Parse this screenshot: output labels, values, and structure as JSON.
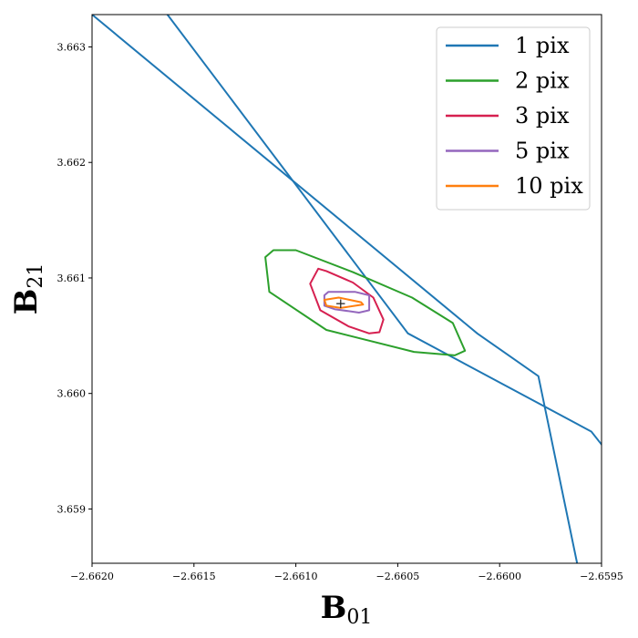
{
  "chart_data": {
    "type": "line",
    "title": "",
    "xlabel": {
      "main": "B",
      "sub": "01"
    },
    "ylabel": {
      "main": "B",
      "sub": "21"
    },
    "xlim": [
      -2.662,
      -2.6595
    ],
    "ylim": [
      3.65853,
      3.66328
    ],
    "xticks": [
      -2.662,
      -2.6615,
      -2.661,
      -2.6605,
      -2.66,
      -2.6595
    ],
    "xtick_labels": [
      "−2.6620",
      "−2.6615",
      "−2.6610",
      "−2.6605",
      "−2.6600",
      "−2.6595"
    ],
    "yticks": [
      3.659,
      3.66,
      3.661,
      3.662,
      3.663
    ],
    "ytick_labels": [
      "3.659",
      "3.660",
      "3.661",
      "3.662",
      "3.663"
    ],
    "grid": false,
    "legend_position": "top-right",
    "center_marker": {
      "x": -2.66078,
      "y": 3.66078,
      "symbol": "+"
    },
    "series": [
      {
        "name": "1 pix",
        "color": "#1f77b4",
        "lines": [
          [
            [
              -2.662,
              3.66328
            ],
            [
              -2.66011,
              3.66052
            ],
            [
              -2.65981,
              3.66015
            ],
            [
              -2.65962,
              3.65853
            ]
          ],
          [
            [
              -2.66163,
              3.66328
            ],
            [
              -2.66045,
              3.66052
            ],
            [
              -2.65955,
              3.65967
            ],
            [
              -2.65904,
              3.65853
            ]
          ]
        ]
      },
      {
        "name": "2 pix",
        "color": "#2ca02c",
        "closed": true,
        "points": [
          [
            -2.66111,
            3.66124
          ],
          [
            -2.661,
            3.66124
          ],
          [
            -2.66072,
            3.66105
          ],
          [
            -2.66043,
            3.66083
          ],
          [
            -2.66023,
            3.66061
          ],
          [
            -2.66017,
            3.66037
          ],
          [
            -2.66022,
            3.66033
          ],
          [
            -2.66042,
            3.66036
          ],
          [
            -2.66085,
            3.66055
          ],
          [
            -2.66113,
            3.66088
          ],
          [
            -2.66115,
            3.66118
          ]
        ]
      },
      {
        "name": "3 pix",
        "color": "#d62050",
        "closed": true,
        "points": [
          [
            -2.66089,
            3.66108
          ],
          [
            -2.66085,
            3.66106
          ],
          [
            -2.66072,
            3.66096
          ],
          [
            -2.66062,
            3.66083
          ],
          [
            -2.66057,
            3.66064
          ],
          [
            -2.66059,
            3.66053
          ],
          [
            -2.66064,
            3.66052
          ],
          [
            -2.66074,
            3.66058
          ],
          [
            -2.66088,
            3.66072
          ],
          [
            -2.66093,
            3.66095
          ]
        ]
      },
      {
        "name": "5 pix",
        "color": "#9467bd",
        "closed": true,
        "points": [
          [
            -2.66084,
            3.66088
          ],
          [
            -2.66071,
            3.66088
          ],
          [
            -2.66064,
            3.66085
          ],
          [
            -2.66064,
            3.66072
          ],
          [
            -2.66069,
            3.6607
          ],
          [
            -2.66081,
            3.66073
          ],
          [
            -2.66086,
            3.66076
          ],
          [
            -2.66086,
            3.66085
          ]
        ]
      },
      {
        "name": "10 pix",
        "color": "#ff7f0e",
        "closed": true,
        "points": [
          [
            -2.66086,
            3.66081
          ],
          [
            -2.66079,
            3.66083
          ],
          [
            -2.66068,
            3.66079
          ],
          [
            -2.66067,
            3.66077
          ],
          [
            -2.66078,
            3.66074
          ],
          [
            -2.66085,
            3.66076
          ]
        ]
      }
    ]
  }
}
